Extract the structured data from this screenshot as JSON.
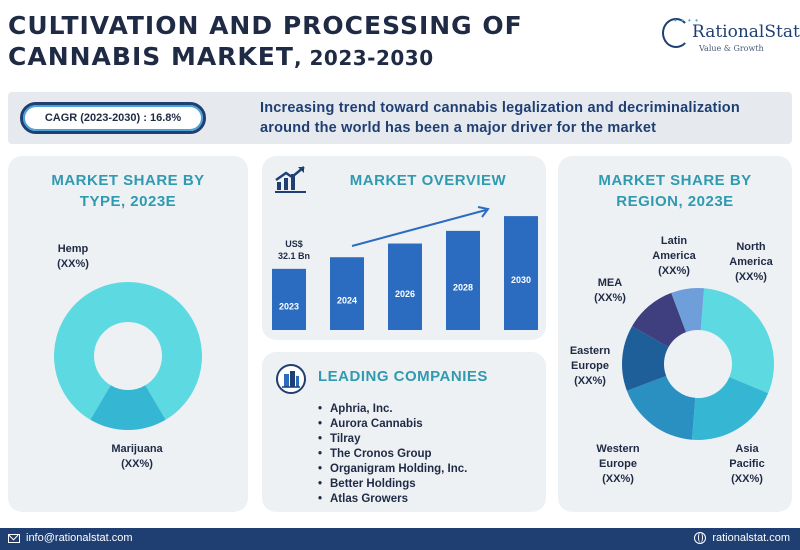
{
  "header": {
    "title_line1": "CULTIVATION AND PROCESSING OF",
    "title_line2": "CANNABIS MARKET",
    "title_years": ", 2023-2030"
  },
  "logo": {
    "name": "RationalStat",
    "tagline": "Value & Growth"
  },
  "banner": {
    "cagr": "CAGR (2023-2030) : 16.8%",
    "text_line1": "Increasing trend toward cannabis legalization and decriminalization",
    "text_line2": "around the world has been a major driver for the market"
  },
  "type_card": {
    "title_line1": "MARKET SHARE BY",
    "title_line2": "TYPE, 2023E",
    "segments": [
      {
        "name": "Hemp",
        "value_label": "(XX%)",
        "share": 0.83,
        "color": "#5dd9e2"
      },
      {
        "name": "Marijuana",
        "value_label": "(XX%)",
        "share": 0.17,
        "color": "#35b7d4"
      }
    ]
  },
  "overview_card": {
    "title": "MARKET OVERVIEW",
    "value_label_line1": "US$",
    "value_label_line2": "32.1 Bn"
  },
  "chart_data": [
    {
      "type": "bar",
      "categories": [
        "2023",
        "2024",
        "2026",
        "2028",
        "2030"
      ],
      "values": [
        58,
        69,
        82,
        94,
        108
      ],
      "title": "MARKET OVERVIEW",
      "xlabel": "",
      "ylabel": "",
      "ylim": [
        0,
        110
      ],
      "annotation": "US$ 32.1 Bn",
      "bar_color": "#2b6cc0"
    },
    {
      "type": "pie",
      "title": "MARKET SHARE BY REGION, 2023E",
      "categories": [
        "North America",
        "Asia Pacific",
        "Western Europe",
        "Eastern Europe",
        "MEA",
        "Latin America"
      ],
      "values": [
        30,
        20,
        18,
        14,
        11,
        7
      ],
      "colors": [
        "#5dd9e2",
        "#35b7d4",
        "#2a8fc1",
        "#1f5f99",
        "#3f3f7f",
        "#6f9fdb"
      ]
    }
  ],
  "region_card": {
    "title_line1": "MARKET SHARE BY",
    "title_line2": "REGION, 2023E",
    "labels": {
      "north_america": [
        "North",
        "America",
        "(XX%)"
      ],
      "asia_pacific": [
        "Asia",
        "Pacific",
        "(XX%)"
      ],
      "western_europe": [
        "Western",
        "Europe",
        "(XX%)"
      ],
      "eastern_europe": [
        "Eastern",
        "Europe",
        "(XX%)"
      ],
      "mea": [
        "MEA",
        "(XX%)"
      ],
      "latin_america": [
        "Latin",
        "America",
        "(XX%)"
      ]
    }
  },
  "companies_card": {
    "title": "LEADING COMPANIES",
    "items": [
      "Aphria, Inc.",
      "Aurora Cannabis",
      "Tilray",
      "The Cronos Group",
      "Organigram Holding, Inc.",
      "Better Holdings",
      "Atlas Growers"
    ]
  },
  "footer": {
    "email": "info@rationalstat.com",
    "website": "rationalstat.com"
  }
}
